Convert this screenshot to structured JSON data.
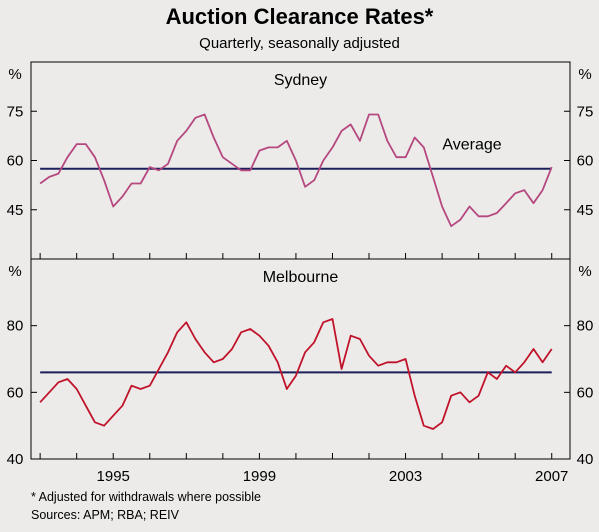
{
  "title": "Auction Clearance Rates*",
  "subtitle": "Quarterly, seasonally adjusted",
  "footnote": "*   Adjusted for withdrawals where possible",
  "sources": "Sources: APM; RBA; REIV",
  "colors": {
    "sydney_line": "#b5487f",
    "melbourne_line": "#c0132a",
    "average_line": "#1c1f5c",
    "background": "#ecebea"
  },
  "x_axis": {
    "range": [
      1992.75,
      2007.5
    ],
    "ticks": [
      1993,
      1994,
      1995,
      1996,
      1997,
      1998,
      1999,
      2000,
      2001,
      2002,
      2003,
      2004,
      2005,
      2006,
      2007
    ],
    "tick_labels": [
      {
        "value": 1995,
        "label": "1995"
      },
      {
        "value": 1999,
        "label": "1999"
      },
      {
        "value": 2003,
        "label": "2003"
      },
      {
        "value": 2007,
        "label": "2007"
      }
    ]
  },
  "chart_data": [
    {
      "type": "line",
      "title": "Sydney",
      "unit_label": "%",
      "ylim": [
        30,
        90
      ],
      "y_ticks": [
        "45",
        "60",
        "75"
      ],
      "y_tick_values": [
        45,
        60,
        75
      ],
      "average_label": "Average",
      "average": 57.5,
      "average_x_range": [
        1993.0,
        2007.0
      ],
      "x": [
        1993.0,
        1993.25,
        1993.5,
        1993.75,
        1994.0,
        1994.25,
        1994.5,
        1994.75,
        1995.0,
        1995.25,
        1995.5,
        1995.75,
        1996.0,
        1996.25,
        1996.5,
        1996.75,
        1997.0,
        1997.25,
        1997.5,
        1997.75,
        1998.0,
        1998.25,
        1998.5,
        1998.75,
        1999.0,
        1999.25,
        1999.5,
        1999.75,
        2000.0,
        2000.25,
        2000.5,
        2000.75,
        2001.0,
        2001.25,
        2001.5,
        2001.75,
        2002.0,
        2002.25,
        2002.5,
        2002.75,
        2003.0,
        2003.25,
        2003.5,
        2003.75,
        2004.0,
        2004.25,
        2004.5,
        2004.75,
        2005.0,
        2005.25,
        2005.5,
        2005.75,
        2006.0,
        2006.25,
        2006.5,
        2006.75,
        2007.0
      ],
      "values": [
        53,
        55,
        56,
        61,
        65,
        65,
        61,
        54,
        46,
        49,
        53,
        53,
        58,
        57,
        59,
        66,
        69,
        73,
        74,
        67,
        61,
        59,
        57,
        57,
        63,
        64,
        64,
        66,
        60,
        52,
        54,
        60,
        64,
        69,
        71,
        66,
        74,
        74,
        66,
        61,
        61,
        67,
        64,
        55,
        46,
        40,
        42,
        46,
        43,
        43,
        44,
        47,
        50,
        51,
        47,
        51,
        58
      ]
    },
    {
      "type": "line",
      "title": "Melbourne",
      "unit_label": "%",
      "ylim": [
        40,
        100
      ],
      "y_ticks": [
        "40",
        "60",
        "80"
      ],
      "y_tick_values": [
        40,
        60,
        80
      ],
      "average": 66,
      "average_x_range": [
        1993.0,
        2007.0
      ],
      "x": [
        1993.0,
        1993.25,
        1993.5,
        1993.75,
        1994.0,
        1994.25,
        1994.5,
        1994.75,
        1995.0,
        1995.25,
        1995.5,
        1995.75,
        1996.0,
        1996.25,
        1996.5,
        1996.75,
        1997.0,
        1997.25,
        1997.5,
        1997.75,
        1998.0,
        1998.25,
        1998.5,
        1998.75,
        1999.0,
        1999.25,
        1999.5,
        1999.75,
        2000.0,
        2000.25,
        2000.5,
        2000.75,
        2001.0,
        2001.25,
        2001.5,
        2001.75,
        2002.0,
        2002.25,
        2002.5,
        2002.75,
        2003.0,
        2003.25,
        2003.5,
        2003.75,
        2004.0,
        2004.25,
        2004.5,
        2004.75,
        2005.0,
        2005.25,
        2005.5,
        2005.75,
        2006.0,
        2006.25,
        2006.5,
        2006.75,
        2007.0
      ],
      "values": [
        57,
        60,
        63,
        64,
        61,
        56,
        51,
        50,
        53,
        56,
        62,
        61,
        62,
        67,
        72,
        78,
        81,
        76,
        72,
        69,
        70,
        73,
        78,
        79,
        77,
        74,
        69,
        61,
        65,
        72,
        75,
        81,
        82,
        67,
        77,
        76,
        71,
        68,
        69,
        69,
        70,
        59,
        50,
        49,
        51,
        59,
        60,
        57,
        59,
        66,
        64,
        68,
        66,
        69,
        73,
        69,
        73
      ]
    }
  ]
}
